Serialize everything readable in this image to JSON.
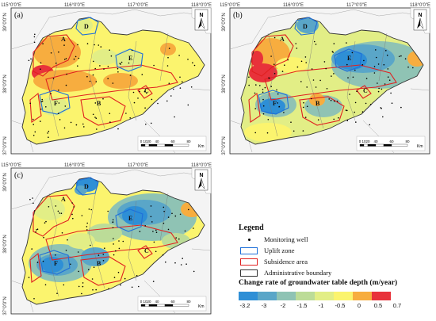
{
  "panels": [
    {
      "label": "(a)",
      "mode": "a"
    },
    {
      "label": "(b)",
      "mode": "b"
    },
    {
      "label": "(c)",
      "mode": "c"
    }
  ],
  "coords": {
    "top": [
      "115°0'0\"E",
      "116°0'0\"E",
      "117°0'0\"E",
      "118°0'0\"E"
    ],
    "left": [
      "39°0'0\"N",
      "38°0'0\"N",
      "37°0'0\"N"
    ]
  },
  "zone_labels": [
    "A",
    "B",
    "C",
    "D",
    "E",
    "F"
  ],
  "north_label": "N",
  "scale_bar": {
    "ticks": [
      "0",
      "10",
      "20",
      "40",
      "60",
      "80"
    ],
    "unit": "Km"
  },
  "legend": {
    "title": "Legend",
    "items": [
      {
        "label": "Monitoring well",
        "symbol": "dot",
        "color": "#000000"
      },
      {
        "label": "Uplift zone",
        "symbol": "box",
        "color": "#1e6fd9"
      },
      {
        "label": "Subsidence area",
        "symbol": "box",
        "color": "#e02020"
      },
      {
        "label": "Administrative boundary",
        "symbol": "box",
        "color": "#333333"
      }
    ],
    "colorbar_title": "Change rate of groundwater table depth (m/year)",
    "colorbar": {
      "ticks": [
        "-3.2",
        "-3",
        "-2",
        "-1.5",
        "-1",
        "-0.5",
        "0",
        "0.5",
        "0.7"
      ],
      "colors": [
        "#2e8fd6",
        "#5aa6c8",
        "#8fc3b4",
        "#bcdc98",
        "#e2ee86",
        "#fbf46e",
        "#f7ad3f",
        "#e8323a"
      ]
    }
  }
}
